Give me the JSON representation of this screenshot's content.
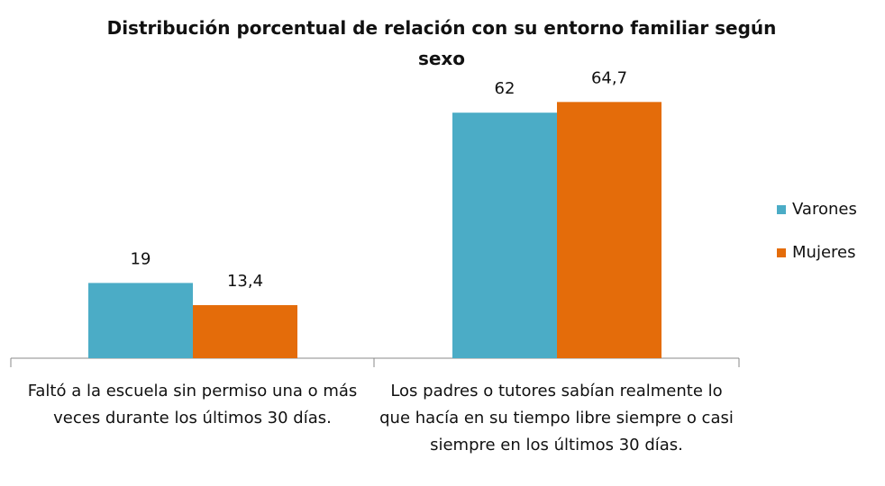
{
  "chart_data": {
    "type": "bar",
    "title": "Distribución porcentual de relación con su entorno familiar según sexo",
    "categories": [
      "Faltó a la escuela sin permiso una o más veces durante los últimos 30 días.",
      "Los padres o tutores sabían realmente lo que hacía en su tiempo libre siempre o casi siempre en los últimos 30 días."
    ],
    "series": [
      {
        "name": "Varones",
        "color": "#4bacc6",
        "values": [
          19,
          62
        ],
        "value_labels": [
          "19",
          "62"
        ]
      },
      {
        "name": "Mujeres",
        "color": "#e46c0a",
        "values": [
          13.4,
          64.7
        ],
        "value_labels": [
          "13,4",
          "64,7"
        ]
      }
    ],
    "legend": "right"
  }
}
